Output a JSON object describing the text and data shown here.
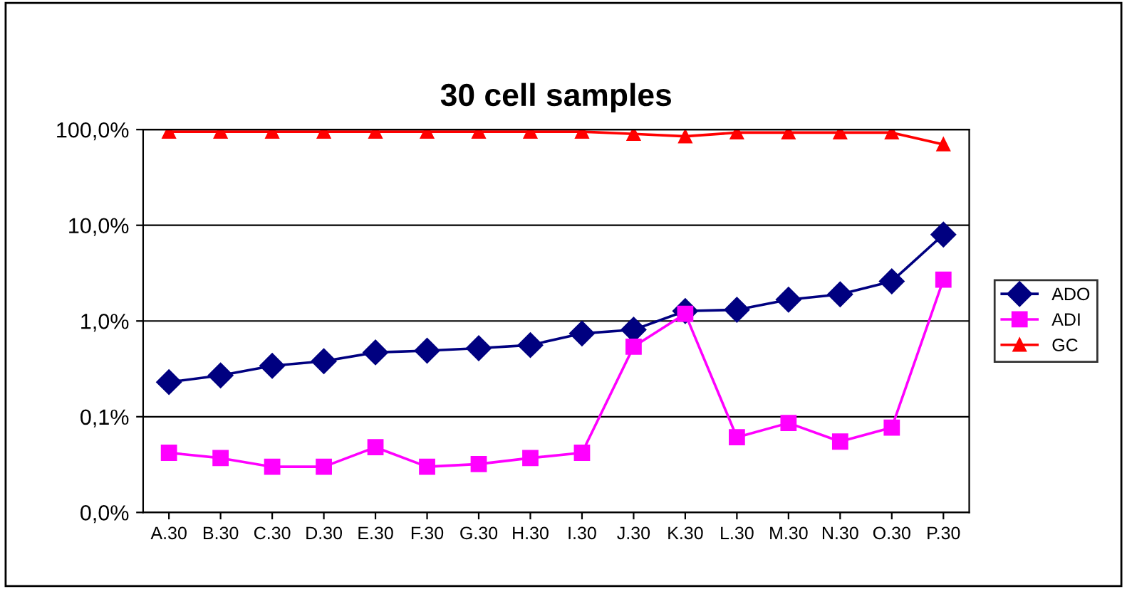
{
  "chart_data": {
    "type": "line",
    "title": "30 cell samples",
    "categories": [
      "A.30",
      "B.30",
      "C.30",
      "D.30",
      "E.30",
      "F.30",
      "G.30",
      "H.30",
      "I.30",
      "J.30",
      "K.30",
      "L.30",
      "M.30",
      "N.30",
      "O.30",
      "P.30"
    ],
    "series": [
      {
        "name": "ADO",
        "color": "#000080",
        "marker": "diamond",
        "values": [
          0.23,
          0.27,
          0.34,
          0.38,
          0.47,
          0.49,
          0.52,
          0.56,
          0.74,
          0.81,
          1.27,
          1.31,
          1.67,
          1.9,
          2.6,
          8.0
        ]
      },
      {
        "name": "ADI",
        "color": "#ff00ff",
        "marker": "square",
        "values": [
          0.042,
          0.037,
          0.03,
          0.03,
          0.048,
          0.03,
          0.032,
          0.037,
          0.042,
          0.54,
          1.19,
          0.061,
          0.086,
          0.055,
          0.077,
          2.7
        ]
      },
      {
        "name": "GC",
        "color": "#ff0000",
        "marker": "triangle",
        "values": [
          95,
          95,
          95,
          95,
          95,
          95,
          95,
          95,
          95,
          90,
          85,
          93,
          93,
          93,
          93,
          70
        ]
      }
    ],
    "log": true,
    "ylim": [
      0.01,
      100
    ],
    "yticks": [
      {
        "value": 0.01,
        "label": "0,0%"
      },
      {
        "value": 0.1,
        "label": "0,1%"
      },
      {
        "value": 1,
        "label": "1,0%"
      },
      {
        "value": 10,
        "label": "10,0%"
      },
      {
        "value": 100,
        "label": "100,0%"
      }
    ],
    "grid": "y",
    "legend": "right",
    "line_style": "solid"
  }
}
